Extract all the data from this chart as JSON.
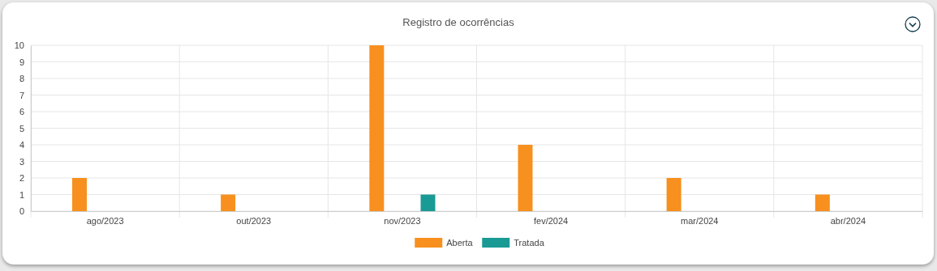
{
  "chart_data": {
    "type": "bar",
    "title": "Registro de ocorrências",
    "categories": [
      "ago/2023",
      "out/2023",
      "nov/2023",
      "fev/2024",
      "mar/2024",
      "abr/2024"
    ],
    "series": [
      {
        "name": "Aberta",
        "color": "#f7901e",
        "values": [
          2,
          1,
          10,
          4,
          2,
          1
        ]
      },
      {
        "name": "Tratada",
        "color": "#1a9a94",
        "values": [
          0,
          0,
          1,
          0,
          0,
          0
        ]
      }
    ],
    "ylim": [
      0,
      10
    ],
    "yticks": [
      0,
      1,
      2,
      3,
      4,
      5,
      6,
      7,
      8,
      9,
      10
    ],
    "grid": true,
    "legend": "bottom"
  }
}
